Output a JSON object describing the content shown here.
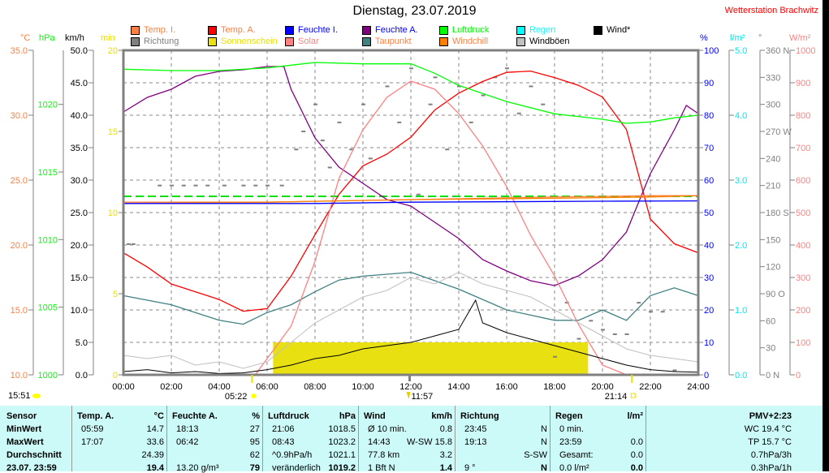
{
  "header": {
    "title": "Dienstag, 23.07.2019",
    "station": "Wetterstation Brachwitz"
  },
  "legend": [
    {
      "label": "Temp. I.",
      "color": "#ff8040",
      "text_color": "#ff8040"
    },
    {
      "label": "Richtung",
      "color": "#808080",
      "text_color": "#808080"
    },
    {
      "label": "Temp. A.",
      "color": "#ff0000",
      "text_color": "#ff8040"
    },
    {
      "label": "Sonnenschein",
      "color": "#e8e010",
      "text_color": "#e8e010"
    },
    {
      "label": "Feuchte I.",
      "color": "#0000ff",
      "text_color": "#0000ff"
    },
    {
      "label": "Solar",
      "color": "#ff8080",
      "text_color": "#ff8080"
    },
    {
      "label": "Feuchte A.",
      "color": "#800080",
      "text_color": "#0000ff"
    },
    {
      "label": "Taupunkt",
      "color": "#408080",
      "text_color": "#ff8040"
    },
    {
      "label": "Luftdruck",
      "color": "#00ff00",
      "text_color": "#00ff00"
    },
    {
      "label": "Windchill",
      "color": "#ff8000",
      "text_color": "#ff8040"
    },
    {
      "label": "Regen",
      "color": "#00ffff",
      "text_color": "#00ffff"
    },
    {
      "label": "Windböen",
      "color": "#c0c0c0",
      "text_color": "#000000"
    },
    {
      "label": "Wind*",
      "color": "#000000",
      "text_color": "#000000"
    }
  ],
  "chart_data": {
    "type": "line",
    "title": "Dienstag, 23.07.2019",
    "x_ticks": [
      "00:00",
      "02:00",
      "04:00",
      "06:00",
      "08:00",
      "10:00",
      "12:00",
      "14:00",
      "16:00",
      "18:00",
      "20:00",
      "22:00",
      "24:00"
    ],
    "xlim": [
      0,
      24
    ],
    "grid": true,
    "axes": {
      "temp": {
        "unit": "°C",
        "color": "#ff8040",
        "range": [
          10,
          35
        ],
        "ticks": [
          "35.0",
          "30.0",
          "25.0",
          "20.0",
          "15.0",
          "10.0"
        ]
      },
      "pressure": {
        "unit": "hPa",
        "color": "#00ff00",
        "range": [
          1000,
          1024
        ],
        "ticks": [
          "1020",
          "1015",
          "1010",
          "1005",
          "1000"
        ]
      },
      "wind": {
        "unit": "km/h",
        "color": "#000000",
        "range": [
          0,
          50
        ],
        "ticks": [
          "50.0",
          "45.0",
          "40.0",
          "35.0",
          "30.0",
          "25.0",
          "20.0",
          "15.0",
          "10.0",
          "5.0",
          "0.0"
        ]
      },
      "sun": {
        "unit": "min",
        "color": "#e8e000",
        "range": [
          0,
          20
        ],
        "ticks": [
          "20",
          "15",
          "10",
          "5",
          "0"
        ]
      },
      "humidity": {
        "unit": "%",
        "color": "#0000ff",
        "range": [
          0,
          100
        ],
        "ticks": [
          "100",
          "90",
          "80",
          "70",
          "60",
          "50",
          "40",
          "30",
          "20",
          "10",
          "0"
        ]
      },
      "rain": {
        "unit": "l/m²",
        "color": "#00e8f0",
        "range": [
          0,
          5
        ],
        "ticks": [
          "5.0",
          "4.0",
          "3.0",
          "2.0",
          "1.0",
          "0.0"
        ]
      },
      "direction": {
        "unit": "°",
        "color": "#808080",
        "range": [
          0,
          360
        ],
        "ticks": [
          "360 N",
          "330",
          "300",
          "270 W",
          "240",
          "210",
          "180 S",
          "150",
          "120",
          "90  O",
          "60",
          "30",
          "0   N"
        ]
      },
      "solar": {
        "unit": "W/m²",
        "color": "#ff8080",
        "range": [
          0,
          1000
        ],
        "ticks": [
          "1000",
          "900",
          "800",
          "700",
          "600",
          "500",
          "400",
          "300",
          "200",
          "100",
          "0"
        ]
      }
    },
    "series": [
      {
        "name": "Temp. A.",
        "axis": "temp",
        "color": "#ff0000",
        "x": [
          0,
          1,
          2,
          3,
          4,
          5,
          6,
          7,
          8,
          9,
          10,
          11,
          12,
          13,
          14,
          15,
          16,
          17,
          18,
          19,
          20,
          21,
          22,
          23,
          24
        ],
        "values": [
          19.4,
          18.3,
          17.0,
          16.4,
          15.8,
          14.9,
          15.1,
          17.6,
          20.8,
          23.9,
          26.1,
          27.0,
          28.3,
          30.4,
          31.7,
          32.6,
          33.3,
          33.4,
          32.9,
          32.3,
          31.4,
          28.9,
          22.0,
          20.1,
          19.4
        ]
      },
      {
        "name": "Feuchte A.",
        "axis": "humidity",
        "color": "#800080",
        "x": [
          0,
          1,
          2,
          3,
          4,
          5,
          6,
          6.7,
          7,
          8,
          9,
          10,
          11,
          12,
          13,
          14,
          15,
          16,
          17,
          18,
          19,
          20,
          21,
          22,
          23,
          23.5,
          24
        ],
        "values": [
          81,
          85.5,
          88,
          92,
          93.5,
          94,
          95,
          95,
          88,
          73,
          64,
          59,
          54,
          52,
          47,
          42,
          35.5,
          32,
          29,
          27.5,
          30.5,
          35.5,
          44,
          62,
          75.5,
          83,
          80.5
        ]
      },
      {
        "name": "Luftdruck",
        "axis": "pressure",
        "color": "#00ff00",
        "x": [
          0,
          2,
          4,
          6,
          8,
          10,
          12,
          13,
          14,
          16,
          18,
          20,
          21,
          22,
          23,
          24
        ],
        "values": [
          1022.6,
          1022.5,
          1022.5,
          1022.7,
          1023.1,
          1023.0,
          1023.0,
          1022.3,
          1021.4,
          1020.2,
          1019.3,
          1018.9,
          1018.6,
          1018.7,
          1019.0,
          1019.2
        ]
      },
      {
        "name": "Taupunkt",
        "axis": "temp",
        "color": "#408080",
        "x": [
          0,
          2,
          4,
          5,
          6,
          7,
          8,
          9,
          10,
          12,
          14,
          16,
          18,
          19,
          20,
          21,
          22,
          23,
          24
        ],
        "values": [
          16.1,
          15.4,
          14.2,
          13.9,
          14.8,
          15.4,
          16.4,
          17.3,
          17.6,
          17.9,
          16.6,
          15.0,
          14.2,
          14.2,
          15.0,
          14.2,
          16.1,
          16.7,
          16.1
        ]
      },
      {
        "name": "Solar",
        "axis": "solar",
        "color": "#ff8080",
        "x": [
          0,
          5.5,
          6,
          7,
          8,
          9,
          10,
          11,
          12,
          13,
          14,
          15,
          16,
          17,
          18,
          19,
          20,
          21,
          24
        ],
        "values": [
          0,
          0,
          50,
          150,
          350,
          605,
          755,
          855,
          905,
          880,
          805,
          705,
          580,
          430,
          305,
          155,
          30,
          0,
          0
        ]
      },
      {
        "name": "Temp. I.",
        "axis": "temp",
        "color": "#ff8040",
        "x": [
          0,
          6,
          12,
          18,
          22,
          24
        ],
        "values": [
          23.3,
          23.3,
          23.5,
          23.7,
          23.8,
          23.8
        ]
      },
      {
        "name": "Windchill",
        "axis": "temp",
        "color": "#ff8000",
        "x": [
          0,
          6,
          12,
          18,
          22,
          24
        ],
        "values": [
          23.2,
          23.3,
          23.5,
          23.6,
          23.7,
          23.8
        ]
      },
      {
        "name": "Feuchte I.",
        "axis": "humidity",
        "color": "#0000ff",
        "x": [
          0,
          8,
          12,
          20,
          24
        ],
        "values": [
          52.8,
          52.8,
          53.2,
          53.5,
          53.6
        ]
      },
      {
        "name": "Windböen",
        "axis": "wind",
        "color": "#c0c0c0",
        "x": [
          0,
          1,
          2,
          3,
          4,
          5,
          6,
          7,
          8,
          9,
          10,
          11,
          12,
          13,
          14,
          15,
          16,
          17,
          18,
          19,
          20,
          21,
          22,
          23,
          24
        ],
        "values": [
          3,
          2.5,
          3,
          1.5,
          2,
          1,
          2,
          5,
          8,
          10,
          12,
          13,
          15,
          14,
          15.8,
          14,
          13,
          12,
          10,
          8,
          6,
          4,
          3,
          2.5,
          2
        ]
      },
      {
        "name": "Wind*",
        "axis": "wind",
        "color": "#000000",
        "x": [
          0,
          1,
          2,
          3,
          4,
          5,
          6,
          7,
          8,
          9,
          10,
          11,
          12,
          13,
          14,
          14.7,
          15,
          16,
          17,
          18,
          19,
          20,
          21,
          22,
          23,
          24
        ],
        "values": [
          0.5,
          0.8,
          0.3,
          0.5,
          0.2,
          0.3,
          0.8,
          1.5,
          2.5,
          3,
          4,
          4.5,
          5,
          6,
          7,
          11.5,
          8,
          6.5,
          5.5,
          4.5,
          3.5,
          2.5,
          1.5,
          0.8,
          0.5,
          0.4
        ]
      },
      {
        "name": "Regen",
        "axis": "rain",
        "color": "#00ffff",
        "x": [
          0,
          24
        ],
        "values": [
          0,
          0
        ]
      }
    ],
    "sunshine": {
      "name": "Sonnenschein",
      "axis": "sun",
      "color": "#e8e010",
      "intervals": [
        [
          6.25,
          19.4,
          2
        ]
      ]
    },
    "direction_points": {
      "name": "Richtung",
      "axis": "direction",
      "color": "#808080",
      "points": [
        [
          0.2,
          145
        ],
        [
          0.4,
          145
        ],
        [
          1.5,
          210
        ],
        [
          2,
          210
        ],
        [
          2.5,
          210
        ],
        [
          3,
          210
        ],
        [
          3.5,
          210
        ],
        [
          4.2,
          210
        ],
        [
          5,
          210
        ],
        [
          5.5,
          210
        ],
        [
          6,
          210
        ],
        [
          6.6,
          210
        ],
        [
          7.2,
          250
        ],
        [
          7.5,
          270
        ],
        [
          8,
          300
        ],
        [
          8.3,
          260
        ],
        [
          8.6,
          230
        ],
        [
          9,
          280
        ],
        [
          9.5,
          250
        ],
        [
          10,
          300
        ],
        [
          10.3,
          240
        ],
        [
          11,
          320
        ],
        [
          11.5,
          280
        ],
        [
          12,
          340
        ],
        [
          12.3,
          200
        ],
        [
          12.8,
          300
        ],
        [
          13,
          330
        ],
        [
          13.5,
          250
        ],
        [
          14,
          320
        ],
        [
          14.5,
          280
        ],
        [
          15,
          310
        ],
        [
          15.5,
          330
        ],
        [
          16,
          340
        ],
        [
          16.5,
          290
        ],
        [
          17,
          320
        ],
        [
          17.5,
          300
        ],
        [
          18,
          20
        ],
        [
          18.5,
          80
        ],
        [
          19,
          40
        ],
        [
          19.5,
          60
        ],
        [
          20,
          50
        ],
        [
          20.5,
          45
        ],
        [
          21,
          45
        ],
        [
          21.5,
          80
        ],
        [
          22,
          70
        ],
        [
          22.5,
          70
        ],
        [
          23,
          5
        ],
        [
          23.5,
          0
        ]
      ]
    },
    "annotations": {
      "current_time": "15:51",
      "sunrise": "05:22",
      "noon": "11:57",
      "sunset": "21:14"
    }
  },
  "table": {
    "row_labels": [
      "Sensor",
      "MinWert",
      "MaxWert",
      "Durchschnitt",
      "23.07. 23:59"
    ],
    "columns": [
      {
        "title": "Temp. A.",
        "unit": "°C",
        "rows": [
          [
            "05:59",
            "14.7"
          ],
          [
            "17:07",
            "33.6"
          ],
          [
            "",
            "24.39"
          ],
          [
            "",
            "19.4"
          ]
        ]
      },
      {
        "title": "Feuchte A.",
        "unit": "%",
        "rows": [
          [
            "18:13",
            "27"
          ],
          [
            "06:42",
            "95"
          ],
          [
            "",
            "62"
          ],
          [
            "13.20 g/m³",
            "79"
          ]
        ]
      },
      {
        "title": "Luftdruck",
        "unit": "hPa",
        "rows": [
          [
            "21:06",
            "1018.5"
          ],
          [
            "08:43",
            "1023.2"
          ],
          [
            "^0.9hPa/h",
            "1021.1"
          ],
          [
            "veränderlich",
            "1019.2"
          ]
        ]
      },
      {
        "title": "Wind",
        "unit": "km/h",
        "rows": [
          [
            "Ø 10 min.",
            "0.8"
          ],
          [
            "14:43",
            "W-SW 15.8"
          ],
          [
            "77.8 km",
            "3.2"
          ],
          [
            "1 Bft N",
            "1.4"
          ]
        ]
      },
      {
        "title": "Richtung",
        "unit": "",
        "rows": [
          [
            "23:45",
            "N"
          ],
          [
            "19:13",
            "N"
          ],
          [
            "",
            "S-SW"
          ],
          [
            "9 °",
            "N"
          ]
        ]
      },
      {
        "title": "Regen",
        "unit": "l/m²",
        "rows": [
          [
            "0 min.",
            ""
          ],
          [
            "23:59",
            "0.0"
          ],
          [
            "Gesamt:",
            "0.0"
          ],
          [
            "0.0 l/m²",
            "0.0"
          ]
        ]
      }
    ],
    "extra": [
      "PMV+2:23",
      "WC 19.4 °C",
      "TP 15.7 °C",
      "0.7hPa/3h",
      "0.3hPa/1h"
    ]
  }
}
